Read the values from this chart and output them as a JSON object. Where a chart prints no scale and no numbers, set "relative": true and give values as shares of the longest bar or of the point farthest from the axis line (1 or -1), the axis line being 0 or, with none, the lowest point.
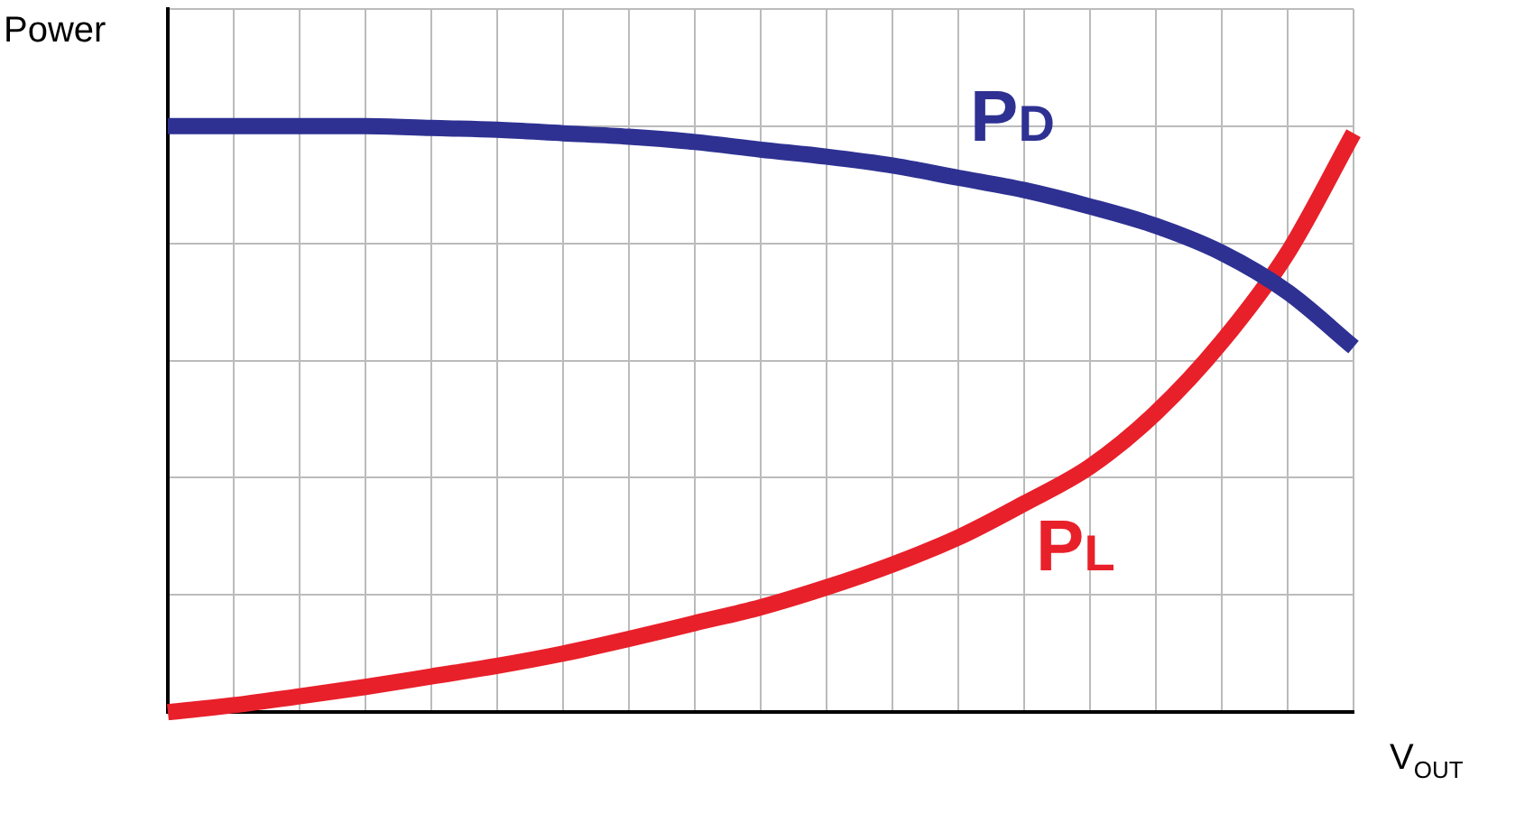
{
  "chart_data": {
    "type": "line",
    "relative": true,
    "xlabel": "V$_{OUT}$",
    "ylabel": "Power",
    "categories": [
      null,
      null,
      null,
      null,
      null,
      null,
      null,
      null,
      null,
      null,
      null,
      null,
      null,
      null,
      null,
      null,
      null,
      null,
      null
    ],
    "series": [
      {
        "name": "P$_{D}$",
        "color": "#2e3192",
        "values": [
          1,
          1,
          1,
          1,
          0.997,
          0.994,
          0.988,
          0.982,
          0.973,
          0.96,
          0.948,
          0.933,
          0.912,
          0.891,
          0.863,
          0.83,
          0.784,
          0.717,
          0.623
        ]
      },
      {
        "name": "P$_{L}$",
        "color": "#e8202a",
        "values": [
          0,
          0.012,
          0.027,
          0.043,
          0.061,
          0.079,
          0.1,
          0.125,
          0.152,
          0.179,
          0.213,
          0.252,
          0.298,
          0.356,
          0.419,
          0.511,
          0.632,
          0.784,
          0.988
        ]
      }
    ],
    "grid": true,
    "legend": false,
    "marker": "none",
    "line_style": "solid"
  }
}
